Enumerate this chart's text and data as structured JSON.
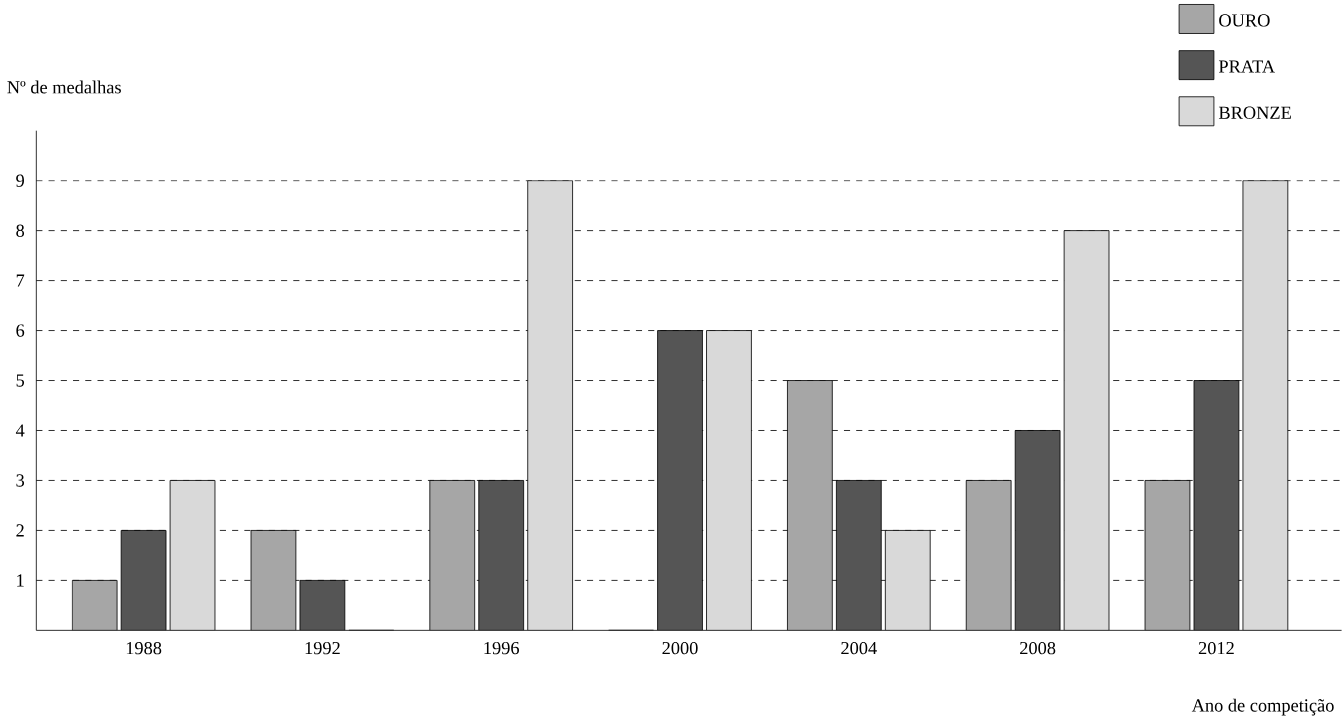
{
  "chart_data": {
    "type": "bar",
    "ylabel": "Nº de medalhas",
    "xlabel": "Ano de competição",
    "categories": [
      "1988",
      "1992",
      "1996",
      "2000",
      "2004",
      "2008",
      "2012"
    ],
    "series": [
      {
        "name": "OURO",
        "color": "#a6a6a6",
        "values": [
          1,
          2,
          3,
          0,
          5,
          3,
          3
        ]
      },
      {
        "name": "PRATA",
        "color": "#555555",
        "values": [
          2,
          1,
          3,
          6,
          3,
          4,
          5
        ]
      },
      {
        "name": "BRONZE",
        "color": "#d9d9d9",
        "values": [
          3,
          0,
          9,
          6,
          2,
          8,
          9
        ]
      }
    ],
    "ylim": [
      0,
      10
    ],
    "yticks": [
      1,
      2,
      3,
      4,
      5,
      6,
      7,
      8,
      9
    ],
    "grid": "y",
    "legend": "top right"
  }
}
